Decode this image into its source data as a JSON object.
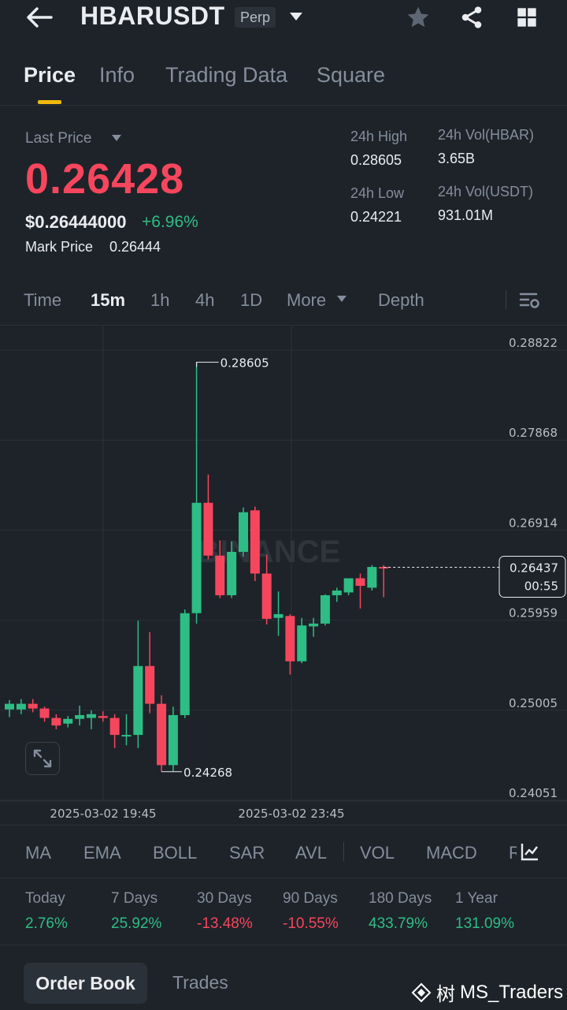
{
  "header": {
    "pair": "HBARUSDT",
    "badge": "Perp",
    "icons": [
      "back-arrow-icon",
      "caret-down-icon",
      "star-icon",
      "share-icon",
      "grid-icon"
    ]
  },
  "tabs": [
    {
      "label": "Price",
      "active": true
    },
    {
      "label": "Info",
      "active": false
    },
    {
      "label": "Trading Data",
      "active": false
    },
    {
      "label": "Square",
      "active": false
    }
  ],
  "price": {
    "last_label": "Last Price",
    "last": "0.26428",
    "usd": "$0.26444000",
    "change": "+6.96%",
    "mark_label": "Mark Price",
    "mark": "0.26444"
  },
  "stats": {
    "high_label": "24h High",
    "high": "0.28605",
    "low_label": "24h Low",
    "low": "0.24221",
    "vol_base_label": "24h Vol(HBAR)",
    "vol_base": "3.65B",
    "vol_quote_label": "24h Vol(USDT)",
    "vol_quote": "931.01M"
  },
  "intervals": [
    {
      "label": "Time",
      "active": false
    },
    {
      "label": "15m",
      "active": true
    },
    {
      "label": "1h",
      "active": false
    },
    {
      "label": "4h",
      "active": false
    },
    {
      "label": "1D",
      "active": false
    },
    {
      "label": "More",
      "active": false
    },
    {
      "label": "Depth",
      "active": false
    }
  ],
  "chart_data": {
    "type": "candlestick",
    "x_labels": [
      "2025-03-02 19:45",
      "2025-03-02 23:45"
    ],
    "y_ticks": [
      "0.28822",
      "0.27868",
      "0.26914",
      "0.25959",
      "0.25005",
      "0.24051"
    ],
    "ylim": [
      0.24051,
      0.28822
    ],
    "high_marker": "0.28605",
    "low_marker": "0.24268",
    "current_price": "0.26437",
    "countdown": "00:55",
    "watermark": "BINANCE",
    "up_color": "#2ebd85",
    "down_color": "#f6465d",
    "candles": [
      {
        "o": 0.2493,
        "h": 0.2503,
        "l": 0.2485,
        "c": 0.2499
      },
      {
        "o": 0.2493,
        "h": 0.2504,
        "l": 0.2488,
        "c": 0.2499
      },
      {
        "o": 0.2499,
        "h": 0.2504,
        "l": 0.249,
        "c": 0.2494
      },
      {
        "o": 0.2494,
        "h": 0.2496,
        "l": 0.248,
        "c": 0.2484
      },
      {
        "o": 0.2484,
        "h": 0.2488,
        "l": 0.2472,
        "c": 0.2476
      },
      {
        "o": 0.2478,
        "h": 0.2486,
        "l": 0.2474,
        "c": 0.2483
      },
      {
        "o": 0.2483,
        "h": 0.2497,
        "l": 0.2476,
        "c": 0.2487
      },
      {
        "o": 0.2484,
        "h": 0.2492,
        "l": 0.2472,
        "c": 0.2488
      },
      {
        "o": 0.2486,
        "h": 0.2491,
        "l": 0.248,
        "c": 0.2484
      },
      {
        "o": 0.2484,
        "h": 0.2488,
        "l": 0.2452,
        "c": 0.2466
      },
      {
        "o": 0.2466,
        "h": 0.2488,
        "l": 0.2455,
        "c": 0.2466
      },
      {
        "o": 0.2466,
        "h": 0.2587,
        "l": 0.2452,
        "c": 0.2539
      },
      {
        "o": 0.2539,
        "h": 0.2575,
        "l": 0.2489,
        "c": 0.2499
      },
      {
        "o": 0.2499,
        "h": 0.2508,
        "l": 0.2427,
        "c": 0.2434
      },
      {
        "o": 0.2434,
        "h": 0.2496,
        "l": 0.2427,
        "c": 0.2487
      },
      {
        "o": 0.2487,
        "h": 0.2599,
        "l": 0.2484,
        "c": 0.2595
      },
      {
        "o": 0.2595,
        "h": 0.2861,
        "l": 0.2584,
        "c": 0.2712
      },
      {
        "o": 0.2712,
        "h": 0.2742,
        "l": 0.2652,
        "c": 0.2656
      },
      {
        "o": 0.2656,
        "h": 0.2672,
        "l": 0.2611,
        "c": 0.2614
      },
      {
        "o": 0.2614,
        "h": 0.2671,
        "l": 0.2611,
        "c": 0.266
      },
      {
        "o": 0.266,
        "h": 0.2707,
        "l": 0.2655,
        "c": 0.2702
      },
      {
        "o": 0.2704,
        "h": 0.2708,
        "l": 0.2629,
        "c": 0.2637
      },
      {
        "o": 0.2637,
        "h": 0.2657,
        "l": 0.2583,
        "c": 0.2589
      },
      {
        "o": 0.259,
        "h": 0.2618,
        "l": 0.2571,
        "c": 0.2594
      },
      {
        "o": 0.2592,
        "h": 0.2594,
        "l": 0.253,
        "c": 0.2544
      },
      {
        "o": 0.2544,
        "h": 0.259,
        "l": 0.2542,
        "c": 0.2582
      },
      {
        "o": 0.2581,
        "h": 0.259,
        "l": 0.257,
        "c": 0.2584
      },
      {
        "o": 0.2584,
        "h": 0.2615,
        "l": 0.2582,
        "c": 0.2614
      },
      {
        "o": 0.2614,
        "h": 0.2622,
        "l": 0.2607,
        "c": 0.2619
      },
      {
        "o": 0.2617,
        "h": 0.2631,
        "l": 0.2614,
        "c": 0.2632
      },
      {
        "o": 0.2632,
        "h": 0.2637,
        "l": 0.26,
        "c": 0.2624
      },
      {
        "o": 0.2622,
        "h": 0.2646,
        "l": 0.2619,
        "c": 0.2644
      },
      {
        "o": 0.2644,
        "h": 0.2646,
        "l": 0.2612,
        "c": 0.2643
      }
    ]
  },
  "indicators": [
    "MA",
    "EMA",
    "BOLL",
    "SAR",
    "AVL",
    "VOL",
    "MACD",
    "R"
  ],
  "performance": [
    {
      "label": "Today",
      "value": "2.76%",
      "dir": "up"
    },
    {
      "label": "7 Days",
      "value": "25.92%",
      "dir": "up"
    },
    {
      "label": "30 Days",
      "value": "-13.48%",
      "dir": "down"
    },
    {
      "label": "90 Days",
      "value": "-10.55%",
      "dir": "down"
    },
    {
      "label": "180 Days",
      "value": "433.79%",
      "dir": "up"
    },
    {
      "label": "1 Year",
      "value": "131.09%",
      "dir": "up"
    }
  ],
  "bottom_tabs": {
    "order_book": "Order Book",
    "trades": "Trades"
  },
  "overlay": {
    "watermark_text": "MS_Traders",
    "logo_glyph": "树"
  }
}
